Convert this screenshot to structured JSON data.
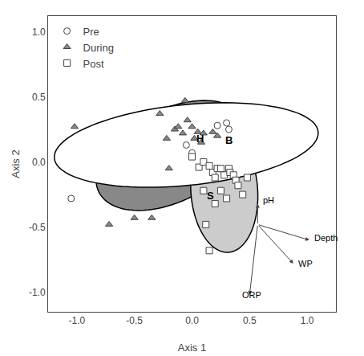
{
  "chart_data": {
    "type": "scatter",
    "xlabel": "Axis 1",
    "ylabel": "Axis 2",
    "series": [
      {
        "name": "Pre",
        "marker": "circle",
        "color": "#ffffff",
        "values": [
          [
            -1.05,
            -0.28
          ],
          [
            -0.05,
            0.13
          ],
          [
            0.0,
            0.07
          ],
          [
            0.3,
            0.3
          ],
          [
            0.22,
            0.28
          ],
          [
            0.32,
            0.25
          ]
        ]
      },
      {
        "name": "During",
        "marker": "triangle-up",
        "color": "#888888",
        "values": [
          [
            -1.02,
            0.27
          ],
          [
            -0.72,
            -0.48
          ],
          [
            -0.35,
            -0.43
          ],
          [
            -0.28,
            0.37
          ],
          [
            -0.2,
            -0.05
          ],
          [
            -0.15,
            0.25
          ],
          [
            -0.12,
            0.27
          ],
          [
            -0.08,
            0.22
          ],
          [
            -0.06,
            0.47
          ],
          [
            -0.04,
            0.32
          ],
          [
            0.0,
            0.27
          ],
          [
            0.02,
            0.18
          ],
          [
            0.05,
            0.23
          ],
          [
            0.08,
            0.15
          ],
          [
            0.1,
            0.22
          ],
          [
            0.18,
            0.23
          ],
          [
            0.22,
            0.2
          ],
          [
            -0.5,
            -0.43
          ],
          [
            -0.22,
            0.18
          ]
        ]
      },
      {
        "name": "Post",
        "marker": "square",
        "color": "#ffffff",
        "values": [
          [
            0.0,
            0.04
          ],
          [
            0.06,
            -0.04
          ],
          [
            0.1,
            0.0
          ],
          [
            0.15,
            -0.03
          ],
          [
            0.18,
            -0.08
          ],
          [
            0.2,
            -0.12
          ],
          [
            0.22,
            -0.05
          ],
          [
            0.25,
            -0.22
          ],
          [
            0.28,
            -0.1
          ],
          [
            0.32,
            -0.05
          ],
          [
            0.33,
            -0.08
          ],
          [
            0.36,
            -0.1
          ],
          [
            0.38,
            -0.14
          ],
          [
            0.4,
            -0.18
          ],
          [
            0.44,
            -0.25
          ],
          [
            0.15,
            -0.68
          ],
          [
            0.12,
            -0.48
          ],
          [
            0.2,
            -0.32
          ],
          [
            0.25,
            -0.05
          ],
          [
            0.3,
            -0.28
          ],
          [
            0.1,
            -0.22
          ],
          [
            0.48,
            -0.12
          ]
        ]
      }
    ],
    "ellipses": [
      {
        "cx": -0.18,
        "cy": 0.05,
        "width": 1.38,
        "height": 0.72,
        "angle": 22,
        "color": "#888888"
      },
      {
        "cx": 0.28,
        "cy": -0.22,
        "width": 0.58,
        "height": 0.95,
        "angle": 5,
        "color": "#cccccc"
      },
      {
        "cx": -0.05,
        "cy": 0.13,
        "width": 2.3,
        "height": 0.62,
        "angle": 5,
        "color": "#ffffff"
      }
    ],
    "annotations": [
      {
        "text": "H",
        "x": -0.02,
        "y": 0.18,
        "anchor": "left"
      },
      {
        "text": "B",
        "x": 0.32,
        "y": 0.17,
        "anchor": "center"
      },
      {
        "text": "S",
        "x": 0.25,
        "y": -0.26,
        "anchor": "right"
      }
    ],
    "arrow_origin": [
      0.57,
      -0.48
    ],
    "arrows": [
      {
        "label": "pH",
        "end_x": 0.57,
        "end_y": -0.32,
        "lx": 0.6,
        "ly": -0.29
      },
      {
        "label": "Depth",
        "end_x": 1.02,
        "end_y": -0.6,
        "lx": 1.05,
        "ly": -0.58
      },
      {
        "label": "WP",
        "end_x": 0.88,
        "end_y": -0.78,
        "lx": 0.91,
        "ly": -0.78
      },
      {
        "label": "ORP",
        "end_x": 0.5,
        "end_y": -1.02,
        "lx": 0.42,
        "ly": -1.02
      }
    ],
    "xlim": [
      -1.25,
      1.25
    ],
    "ylim": [
      -1.15,
      1.12
    ],
    "xticks": [
      {
        "value": -1.0,
        "label": "-1.0"
      },
      -0.5,
      {
        "value": 0.0,
        "label": "0.0"
      },
      0.5,
      {
        "value": 1.0,
        "label": "1.0"
      }
    ],
    "yticks": [
      {
        "value": -1.0,
        "label": "-1.0"
      },
      -0.5,
      {
        "value": 0.0,
        "label": "0.0"
      },
      0.5,
      {
        "value": 1.0,
        "label": "1.0"
      }
    ],
    "grid": false,
    "legend": "upper left"
  }
}
